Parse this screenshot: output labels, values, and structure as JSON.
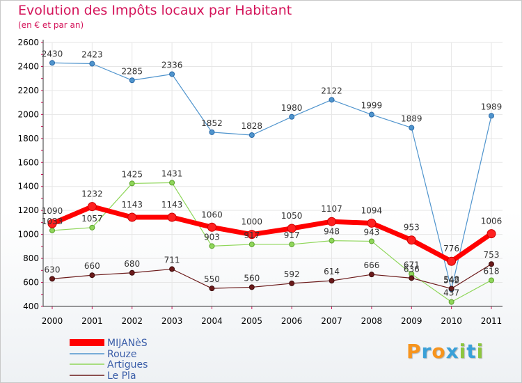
{
  "chart_data": {
    "type": "line",
    "title": "Evolution des Impôts locaux par Habitant",
    "subtitle": "(en € et par an)",
    "xlabel": "",
    "ylabel": "",
    "categories": [
      "2000",
      "2001",
      "2002",
      "2003",
      "2004",
      "2005",
      "2006",
      "2007",
      "2008",
      "2009",
      "2010",
      "2011"
    ],
    "y_ticks": [
      400,
      600,
      800,
      1000,
      1200,
      1400,
      1600,
      1800,
      2000,
      2200,
      2400,
      2600
    ],
    "ylim": [
      400,
      2600
    ],
    "grid": true,
    "legend_position": "bottom-left",
    "series": [
      {
        "name": "MIJANèS",
        "color": "#ff0000",
        "values": [
          1090,
          1232,
          1143,
          1143,
          1060,
          1000,
          1050,
          1107,
          1094,
          953,
          776,
          1006
        ]
      },
      {
        "name": "Rouze",
        "color": "#4f94cd",
        "values": [
          2430,
          2423,
          2285,
          2336,
          1852,
          1828,
          1980,
          2122,
          1999,
          1889,
          542,
          1989
        ]
      },
      {
        "name": "Artigues",
        "color": "#90e060",
        "values": [
          1033,
          1057,
          1425,
          1431,
          903,
          917,
          917,
          948,
          943,
          671,
          437,
          618
        ]
      },
      {
        "name": "Le Pla",
        "color": "#6b1a1a",
        "values": [
          630,
          660,
          680,
          711,
          550,
          560,
          592,
          614,
          666,
          636,
          548,
          753
        ]
      }
    ],
    "labels": [
      [
        "1090",
        "1232",
        "1143",
        "1143",
        "1060",
        "1000",
        "1050",
        "1107",
        "1094",
        "953",
        "776",
        "1006"
      ],
      [
        "2430",
        "2423",
        "2285",
        "2336",
        "1852",
        "1828",
        "1980",
        "2122",
        "1999",
        "1889",
        "542",
        "1989"
      ],
      [
        "1033",
        "1057",
        "1425",
        "1431",
        "903",
        "917",
        "917",
        "948",
        "943",
        "671",
        "437",
        "618"
      ],
      [
        "630",
        "660",
        "680",
        "711",
        "550",
        "560",
        "592",
        "614",
        "666",
        "636",
        "548",
        "753"
      ]
    ]
  },
  "logo": {
    "letters": [
      "P",
      "r",
      "o",
      "x",
      "i",
      "t",
      "i"
    ],
    "colors": [
      "#f7941d",
      "#3aa0d8",
      "#f7941d",
      "#3aa0d8",
      "#8dc63f",
      "#3aa0d8",
      "#8dc63f"
    ]
  }
}
